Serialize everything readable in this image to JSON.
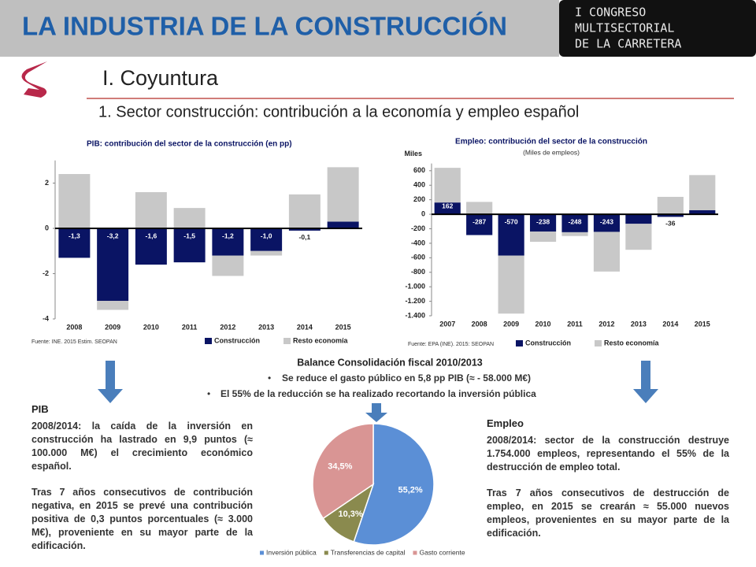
{
  "header": {
    "title": "LA INDUSTRIA DE LA CONSTRUCCIÓN",
    "logo": [
      "I CONGRESO",
      "MULTISECTORIAL",
      "DE LA CARRETERA"
    ]
  },
  "slide": {
    "section": "I. Coyuntura",
    "subtitle": "1. Sector construcción: contribución a la economía y empleo español"
  },
  "chart_data": [
    {
      "type": "bar",
      "stacked": true,
      "title": "PIB: contribución del sector de la construcción (en pp)",
      "source": "Fuente: INE. 2015 Estim. SEOPAN",
      "categories": [
        "2008",
        "2009",
        "2010",
        "2011",
        "2012",
        "2013",
        "2014",
        "2015"
      ],
      "series": [
        {
          "name": "Construcción",
          "color": "#0a1464",
          "values": [
            -1.3,
            -3.2,
            -1.6,
            -1.5,
            -1.2,
            -1.0,
            -0.1,
            0.3
          ],
          "value_labels": [
            "-1,3",
            "-3,2",
            "-1,6",
            "-1,5",
            "-1,2",
            "-1,0",
            "-0,1",
            "0,3"
          ]
        },
        {
          "name": "Resto economía",
          "color": "#c8c8c8",
          "values": [
            2.4,
            -0.4,
            1.6,
            0.9,
            -0.9,
            -0.2,
            1.5,
            2.4
          ]
        }
      ],
      "ylim": [
        -4,
        3
      ],
      "yticks": [
        -4,
        -2,
        0,
        2
      ],
      "legend": "bottom"
    },
    {
      "type": "bar",
      "stacked": true,
      "title": "Empleo: contribución del sector de la construcción",
      "subtitle": "(Miles de empleos)",
      "y_label": "Miles",
      "source": "Fuente: EPA (INE). 2015: SEOPAN",
      "categories": [
        "2007",
        "2008",
        "2009",
        "2010",
        "2011",
        "2012",
        "2013",
        "2014",
        "2015"
      ],
      "series": [
        {
          "name": "Construcción",
          "color": "#0a1464",
          "values": [
            162,
            -287,
            -570,
            -238,
            -248,
            -243,
            -132,
            -36,
            55
          ]
        },
        {
          "name": "Resto economía",
          "color": "#c8c8c8",
          "values": [
            478,
            170,
            -800,
            -142,
            -52,
            -547,
            -358,
            240,
            485
          ]
        }
      ],
      "ylim": [
        -1400,
        700
      ],
      "yticks": [
        {
          "value": -1400,
          "label": "-1.400"
        },
        {
          "value": -1200,
          "label": "-1.200"
        },
        {
          "value": -1000,
          "label": "-1.000"
        },
        -800,
        -600,
        -400,
        -200,
        0,
        200,
        400,
        600
      ],
      "legend": "bottom"
    },
    {
      "type": "pie",
      "categories": [
        "Inversión pública",
        "Transferencias de capital",
        "Gasto corriente"
      ],
      "values": [
        55.2,
        10.3,
        34.5
      ],
      "value_labels": [
        "55,2%",
        "10,3%",
        "34,5%"
      ],
      "colors": [
        "#5b8fd6",
        "#8a8a4e",
        "#d99594"
      ]
    }
  ],
  "balance": {
    "title": "Balance Consolidación fiscal 2010/2013",
    "bullets": [
      "Se reduce el gasto público en 5,8 pp PIB (≈ - 58.000 M€)",
      "El 55% de la reducción se ha realizado recortando la inversión pública"
    ]
  },
  "pib_panel": {
    "title": "PIB",
    "paragraphs": [
      "2008/2014: la caída de la inversión en construcción ha lastrado en 9,9 puntos (≈ 100.000 M€) el crecimiento económico español.",
      "Tras 7 años consecutivos de contribución negativa, en 2015 se prevé una contribución positiva de 0,3 puntos porcentuales (≈ 3.000 M€), proveniente en su mayor parte de la edificación."
    ]
  },
  "empleo_panel": {
    "title": "Empleo",
    "paragraphs": [
      "2008/2014: sector de la construcción destruye 1.754.000 empleos, representando el 55% de la destrucción de empleo total.",
      "Tras 7 años consecutivos de destrucción de empleo, en 2015 se crearán ≈ 55.000 nuevos empleos, provenientes en su mayor parte de la edificación."
    ]
  }
}
